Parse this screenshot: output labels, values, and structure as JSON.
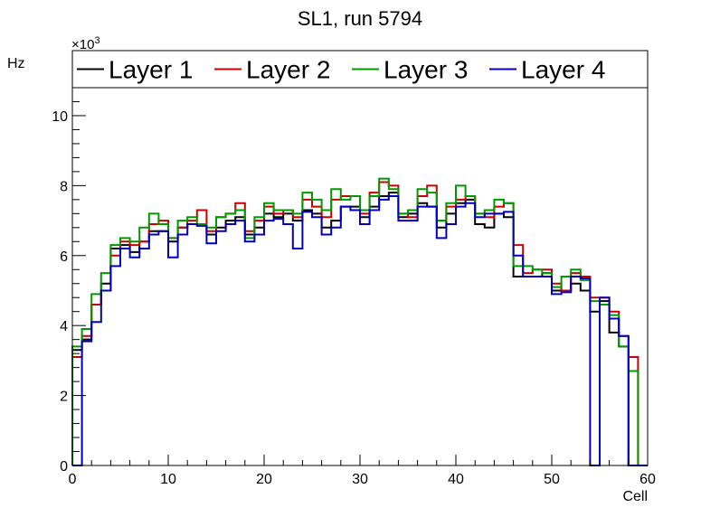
{
  "chart_data": {
    "type": "line",
    "style": "step-histogram",
    "title": "SL1, run 5794",
    "xlabel": "Cell",
    "ylabel": "Hz",
    "y_multiplier": "×10",
    "y_multiplier_exponent": "3",
    "xlim": [
      0,
      60
    ],
    "ylim": [
      0,
      10.8
    ],
    "x_ticks": [
      0,
      10,
      20,
      30,
      40,
      50,
      60
    ],
    "y_ticks": [
      0,
      2,
      4,
      6,
      8,
      10
    ],
    "x_tick_labels": [
      "0",
      "10",
      "20",
      "30",
      "40",
      "50",
      "60"
    ],
    "y_tick_labels": [
      "0",
      "2",
      "4",
      "6",
      "8",
      "10"
    ],
    "legend_position": "top",
    "bins": [
      0,
      1,
      2,
      3,
      4,
      5,
      6,
      7,
      8,
      9,
      10,
      11,
      12,
      13,
      14,
      15,
      16,
      17,
      18,
      19,
      20,
      21,
      22,
      23,
      24,
      25,
      26,
      27,
      28,
      29,
      30,
      31,
      32,
      33,
      34,
      35,
      36,
      37,
      38,
      39,
      40,
      41,
      42,
      43,
      44,
      45,
      46,
      47,
      48,
      49,
      50,
      51,
      52,
      53,
      54,
      55,
      56,
      57,
      58,
      59
    ],
    "series": [
      {
        "name": "Layer 1",
        "color": "#000000",
        "values": [
          3.3,
          3.6,
          4.6,
          5.2,
          6.2,
          6.3,
          6.1,
          6.4,
          6.7,
          6.7,
          6.4,
          6.8,
          6.9,
          6.9,
          6.6,
          6.8,
          7.0,
          7.1,
          6.6,
          6.8,
          7.2,
          7.1,
          7.2,
          7.0,
          7.3,
          7.2,
          6.8,
          7.0,
          7.4,
          7.4,
          7.1,
          7.4,
          7.7,
          7.8,
          7.1,
          7.2,
          7.5,
          7.4,
          6.8,
          7.2,
          7.5,
          7.6,
          6.9,
          6.8,
          7.2,
          7.1,
          5.4,
          5.4,
          5.4,
          5.5,
          5.0,
          5.0,
          5.2,
          5.0,
          4.4,
          4.7,
          3.8,
          3.4,
          0.0,
          0.0
        ]
      },
      {
        "name": "Layer 2",
        "color": "#cc0000",
        "values": [
          3.1,
          3.7,
          4.6,
          5.0,
          6.0,
          6.4,
          6.3,
          6.4,
          6.9,
          7.0,
          6.5,
          6.8,
          7.0,
          7.3,
          6.7,
          7.1,
          7.2,
          7.5,
          6.7,
          7.0,
          7.4,
          7.2,
          7.3,
          7.1,
          7.6,
          7.4,
          7.1,
          7.6,
          7.7,
          7.7,
          7.2,
          7.8,
          8.1,
          8.0,
          7.2,
          7.1,
          7.7,
          8.0,
          7.0,
          7.4,
          7.6,
          7.7,
          7.2,
          7.1,
          7.4,
          7.5,
          6.3,
          5.5,
          5.6,
          5.6,
          5.2,
          5.0,
          5.5,
          5.4,
          4.8,
          4.8,
          4.4,
          3.7,
          3.1,
          0.0
        ]
      },
      {
        "name": "Layer 3",
        "color": "#009900",
        "values": [
          3.4,
          3.9,
          4.9,
          5.5,
          6.3,
          6.5,
          6.4,
          6.8,
          7.2,
          6.9,
          6.5,
          7.0,
          7.1,
          6.9,
          6.8,
          7.1,
          7.2,
          7.3,
          6.5,
          7.1,
          7.5,
          7.3,
          7.3,
          7.2,
          7.8,
          7.6,
          7.3,
          7.9,
          7.6,
          7.7,
          7.3,
          7.7,
          8.2,
          7.9,
          7.2,
          7.3,
          7.9,
          7.8,
          7.0,
          7.5,
          8.0,
          7.7,
          7.2,
          7.3,
          7.6,
          7.5,
          5.7,
          5.7,
          5.6,
          5.5,
          5.1,
          5.4,
          5.6,
          5.3,
          4.7,
          4.6,
          4.3,
          3.4,
          2.7,
          0.0
        ]
      },
      {
        "name": "Layer 4",
        "color": "#0000bb",
        "values": [
          0.0,
          3.55,
          4.1,
          5.0,
          5.7,
          6.2,
          5.95,
          6.2,
          6.6,
          6.7,
          5.95,
          6.6,
          6.9,
          6.85,
          6.35,
          6.7,
          6.9,
          7.0,
          6.4,
          6.6,
          7.0,
          7.05,
          6.9,
          6.2,
          7.25,
          7.1,
          6.6,
          6.8,
          7.4,
          7.3,
          6.9,
          7.3,
          7.6,
          7.7,
          7.0,
          7.0,
          7.4,
          7.4,
          6.5,
          6.9,
          7.4,
          7.5,
          7.1,
          7.2,
          7.2,
          7.25,
          6.0,
          5.4,
          5.4,
          5.4,
          4.9,
          4.95,
          5.4,
          5.35,
          0.0,
          4.8,
          4.2,
          3.7,
          0.0,
          0.0
        ]
      }
    ]
  }
}
